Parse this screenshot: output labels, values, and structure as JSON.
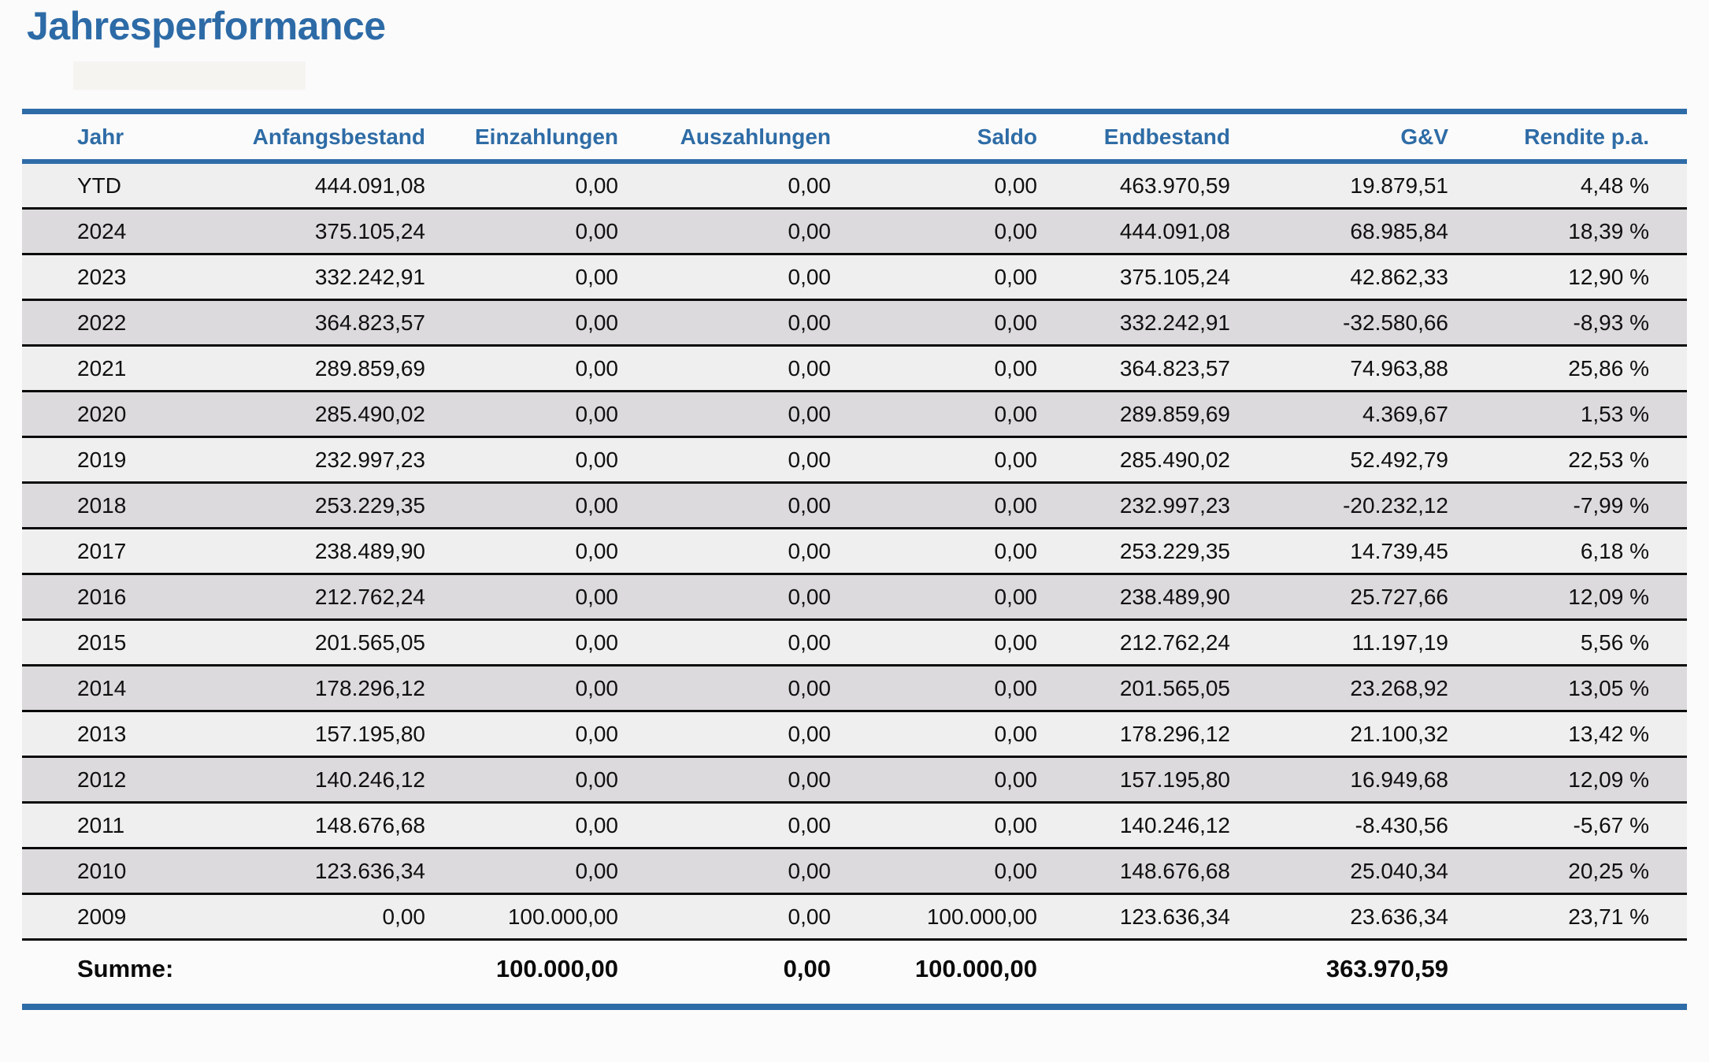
{
  "page": {
    "title": "Jahresperformance"
  },
  "colors": {
    "accent_blue": "#2e6ca8",
    "title_blue": "#2d6ba7",
    "header_text_blue": "#2e6ca6",
    "row_light": "#f0eff0",
    "row_dark": "#dcdadc",
    "row_separator": "#0a0a0a",
    "summary_text": "#0a0a0a"
  },
  "table": {
    "columns": [
      {
        "key": "jahr",
        "label": "Jahr"
      },
      {
        "key": "anfangsbestand",
        "label": "Anfangsbestand"
      },
      {
        "key": "einzahlungen",
        "label": "Einzahlungen"
      },
      {
        "key": "auszahlungen",
        "label": "Auszahlungen"
      },
      {
        "key": "saldo",
        "label": "Saldo"
      },
      {
        "key": "endbestand",
        "label": "Endbestand"
      },
      {
        "key": "gv",
        "label": "G&V"
      },
      {
        "key": "rendite",
        "label": "Rendite p.a."
      }
    ],
    "rows": [
      {
        "jahr": "YTD",
        "anfangsbestand": "444.091,08",
        "einzahlungen": "0,00",
        "auszahlungen": "0,00",
        "saldo": "0,00",
        "endbestand": "463.970,59",
        "gv": "19.879,51",
        "rendite": "4,48 %"
      },
      {
        "jahr": "2024",
        "anfangsbestand": "375.105,24",
        "einzahlungen": "0,00",
        "auszahlungen": "0,00",
        "saldo": "0,00",
        "endbestand": "444.091,08",
        "gv": "68.985,84",
        "rendite": "18,39 %"
      },
      {
        "jahr": "2023",
        "anfangsbestand": "332.242,91",
        "einzahlungen": "0,00",
        "auszahlungen": "0,00",
        "saldo": "0,00",
        "endbestand": "375.105,24",
        "gv": "42.862,33",
        "rendite": "12,90 %"
      },
      {
        "jahr": "2022",
        "anfangsbestand": "364.823,57",
        "einzahlungen": "0,00",
        "auszahlungen": "0,00",
        "saldo": "0,00",
        "endbestand": "332.242,91",
        "gv": "-32.580,66",
        "rendite": "-8,93 %"
      },
      {
        "jahr": "2021",
        "anfangsbestand": "289.859,69",
        "einzahlungen": "0,00",
        "auszahlungen": "0,00",
        "saldo": "0,00",
        "endbestand": "364.823,57",
        "gv": "74.963,88",
        "rendite": "25,86 %"
      },
      {
        "jahr": "2020",
        "anfangsbestand": "285.490,02",
        "einzahlungen": "0,00",
        "auszahlungen": "0,00",
        "saldo": "0,00",
        "endbestand": "289.859,69",
        "gv": "4.369,67",
        "rendite": "1,53 %"
      },
      {
        "jahr": "2019",
        "anfangsbestand": "232.997,23",
        "einzahlungen": "0,00",
        "auszahlungen": "0,00",
        "saldo": "0,00",
        "endbestand": "285.490,02",
        "gv": "52.492,79",
        "rendite": "22,53 %"
      },
      {
        "jahr": "2018",
        "anfangsbestand": "253.229,35",
        "einzahlungen": "0,00",
        "auszahlungen": "0,00",
        "saldo": "0,00",
        "endbestand": "232.997,23",
        "gv": "-20.232,12",
        "rendite": "-7,99 %"
      },
      {
        "jahr": "2017",
        "anfangsbestand": "238.489,90",
        "einzahlungen": "0,00",
        "auszahlungen": "0,00",
        "saldo": "0,00",
        "endbestand": "253.229,35",
        "gv": "14.739,45",
        "rendite": "6,18 %"
      },
      {
        "jahr": "2016",
        "anfangsbestand": "212.762,24",
        "einzahlungen": "0,00",
        "auszahlungen": "0,00",
        "saldo": "0,00",
        "endbestand": "238.489,90",
        "gv": "25.727,66",
        "rendite": "12,09 %"
      },
      {
        "jahr": "2015",
        "anfangsbestand": "201.565,05",
        "einzahlungen": "0,00",
        "auszahlungen": "0,00",
        "saldo": "0,00",
        "endbestand": "212.762,24",
        "gv": "11.197,19",
        "rendite": "5,56 %"
      },
      {
        "jahr": "2014",
        "anfangsbestand": "178.296,12",
        "einzahlungen": "0,00",
        "auszahlungen": "0,00",
        "saldo": "0,00",
        "endbestand": "201.565,05",
        "gv": "23.268,92",
        "rendite": "13,05 %"
      },
      {
        "jahr": "2013",
        "anfangsbestand": "157.195,80",
        "einzahlungen": "0,00",
        "auszahlungen": "0,00",
        "saldo": "0,00",
        "endbestand": "178.296,12",
        "gv": "21.100,32",
        "rendite": "13,42 %"
      },
      {
        "jahr": "2012",
        "anfangsbestand": "140.246,12",
        "einzahlungen": "0,00",
        "auszahlungen": "0,00",
        "saldo": "0,00",
        "endbestand": "157.195,80",
        "gv": "16.949,68",
        "rendite": "12,09 %"
      },
      {
        "jahr": "2011",
        "anfangsbestand": "148.676,68",
        "einzahlungen": "0,00",
        "auszahlungen": "0,00",
        "saldo": "0,00",
        "endbestand": "140.246,12",
        "gv": "-8.430,56",
        "rendite": "-5,67 %"
      },
      {
        "jahr": "2010",
        "anfangsbestand": "123.636,34",
        "einzahlungen": "0,00",
        "auszahlungen": "0,00",
        "saldo": "0,00",
        "endbestand": "148.676,68",
        "gv": "25.040,34",
        "rendite": "20,25 %"
      },
      {
        "jahr": "2009",
        "anfangsbestand": "0,00",
        "einzahlungen": "100.000,00",
        "auszahlungen": "0,00",
        "saldo": "100.000,00",
        "endbestand": "123.636,34",
        "gv": "23.636,34",
        "rendite": "23,71 %"
      }
    ],
    "summary": {
      "jahr": "Summe:",
      "anfangsbestand": "",
      "einzahlungen": "100.000,00",
      "auszahlungen": "0,00",
      "saldo": "100.000,00",
      "endbestand": "",
      "gv": "363.970,59",
      "rendite": ""
    }
  }
}
